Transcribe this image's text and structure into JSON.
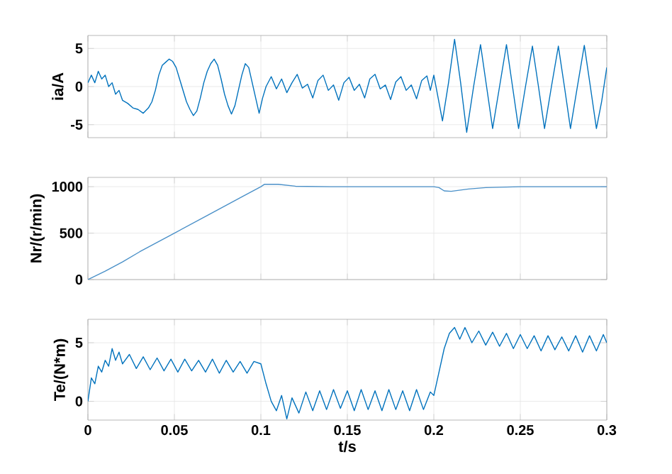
{
  "chart_data": [
    {
      "type": "line",
      "ylabel": "ia/A",
      "xlim": [
        0,
        0.3
      ],
      "ylim": [
        -6.7,
        6.7
      ],
      "xticks": [
        0,
        0.05,
        0.1,
        0.15,
        0.2,
        0.25,
        0.3
      ],
      "yticks": [
        -5,
        0,
        5
      ],
      "grid": true,
      "tick_labels": "y",
      "color": "#0072bd",
      "x": [
        0,
        0.002,
        0.004,
        0.006,
        0.008,
        0.01,
        0.012,
        0.014,
        0.016,
        0.018,
        0.02,
        0.023,
        0.026,
        0.029,
        0.032,
        0.035,
        0.037,
        0.039,
        0.041,
        0.043,
        0.045,
        0.047,
        0.049,
        0.051,
        0.053,
        0.055,
        0.057,
        0.059,
        0.061,
        0.063,
        0.065,
        0.067,
        0.069,
        0.071,
        0.073,
        0.075,
        0.077,
        0.079,
        0.081,
        0.083,
        0.085,
        0.087,
        0.089,
        0.091,
        0.093,
        0.095,
        0.097,
        0.099,
        0.101,
        0.103,
        0.106,
        0.109,
        0.112,
        0.115,
        0.118,
        0.121,
        0.124,
        0.127,
        0.13,
        0.133,
        0.136,
        0.139,
        0.142,
        0.145,
        0.148,
        0.151,
        0.154,
        0.157,
        0.16,
        0.163,
        0.166,
        0.169,
        0.172,
        0.175,
        0.178,
        0.181,
        0.184,
        0.187,
        0.19,
        0.193,
        0.196,
        0.198,
        0.2,
        0.2025,
        0.205,
        0.2085,
        0.212,
        0.2155,
        0.219,
        0.223,
        0.227,
        0.2305,
        0.234,
        0.238,
        0.242,
        0.2455,
        0.249,
        0.253,
        0.257,
        0.2605,
        0.264,
        0.268,
        0.272,
        0.2755,
        0.279,
        0.283,
        0.287,
        0.2905,
        0.294,
        0.297,
        0.3
      ],
      "values": [
        0.5,
        1.5,
        0.5,
        2,
        1,
        1.5,
        0,
        0.5,
        -1,
        -0.5,
        -1.8,
        -2.2,
        -2.8,
        -3,
        -3.5,
        -2.8,
        -2,
        -0.5,
        1.5,
        2.8,
        3.2,
        3.6,
        3.3,
        2.5,
        1,
        -0.5,
        -2,
        -3,
        -3.8,
        -3.2,
        -1.5,
        0.5,
        2,
        3,
        3.6,
        2.8,
        1,
        -1,
        -2.5,
        -3.6,
        -2.5,
        -0.5,
        1.5,
        3,
        2.5,
        0.5,
        -1.5,
        -3.5,
        -1.5,
        0,
        1.3,
        -0.3,
        1,
        -0.8,
        0.5,
        1.6,
        -0.2,
        0.3,
        -1.5,
        0.8,
        1.5,
        -0.5,
        0.2,
        -1.8,
        0.5,
        1.2,
        -0.5,
        0.3,
        -1.5,
        1,
        1.6,
        -0.3,
        0.2,
        -1.7,
        0.6,
        1.3,
        -0.5,
        0.2,
        -1.6,
        0.8,
        1.4,
        -0.5,
        1.5,
        -1.5,
        -4.5,
        0.5,
        6.2,
        0.5,
        -6,
        0,
        5.5,
        0,
        -5.5,
        0,
        5.5,
        0,
        -5.5,
        0,
        5.3,
        0,
        -5.5,
        0,
        5.3,
        0,
        -5.5,
        0,
        5.4,
        0,
        -5.5,
        -2,
        2.5
      ]
    },
    {
      "type": "line",
      "ylabel": "Nr/(r/min)",
      "xlim": [
        0,
        0.3
      ],
      "ylim": [
        0,
        1100
      ],
      "xticks": [
        0,
        0.05,
        0.1,
        0.15,
        0.2,
        0.25,
        0.3
      ],
      "yticks": [
        0,
        500,
        1000
      ],
      "grid": true,
      "tick_labels": "y",
      "color": "#4a90c8",
      "x": [
        0,
        0.01,
        0.02,
        0.03,
        0.05,
        0.07,
        0.09,
        0.1,
        0.102,
        0.11,
        0.12,
        0.14,
        0.2,
        0.203,
        0.206,
        0.21,
        0.22,
        0.23,
        0.25,
        0.3
      ],
      "values": [
        0,
        90,
        190,
        300,
        500,
        700,
        900,
        1000,
        1025,
        1025,
        1005,
        1000,
        1000,
        990,
        955,
        950,
        975,
        990,
        1000,
        1000
      ]
    },
    {
      "type": "line",
      "ylabel": "Te/(N*m)",
      "xlabel": "t/s",
      "xlim": [
        0,
        0.3
      ],
      "ylim": [
        -1.6,
        7
      ],
      "xticks": [
        0,
        0.05,
        0.1,
        0.15,
        0.2,
        0.25,
        0.3
      ],
      "yticks": [
        0,
        5
      ],
      "grid": true,
      "color": "#0072bd",
      "x": [
        0,
        0.002,
        0.004,
        0.006,
        0.008,
        0.01,
        0.012,
        0.014,
        0.016,
        0.018,
        0.02,
        0.024,
        0.028,
        0.032,
        0.036,
        0.04,
        0.044,
        0.048,
        0.052,
        0.056,
        0.06,
        0.064,
        0.068,
        0.072,
        0.076,
        0.08,
        0.084,
        0.088,
        0.092,
        0.096,
        0.1,
        0.103,
        0.106,
        0.109,
        0.112,
        0.115,
        0.118,
        0.122,
        0.126,
        0.13,
        0.134,
        0.138,
        0.142,
        0.146,
        0.15,
        0.154,
        0.158,
        0.162,
        0.166,
        0.17,
        0.174,
        0.178,
        0.182,
        0.186,
        0.19,
        0.194,
        0.198,
        0.2,
        0.203,
        0.206,
        0.209,
        0.212,
        0.215,
        0.218,
        0.222,
        0.226,
        0.23,
        0.234,
        0.238,
        0.242,
        0.246,
        0.25,
        0.254,
        0.258,
        0.262,
        0.266,
        0.27,
        0.274,
        0.278,
        0.282,
        0.286,
        0.29,
        0.294,
        0.298,
        0.3
      ],
      "values": [
        0,
        2,
        1.5,
        3,
        2.5,
        3.5,
        3,
        4.5,
        3.5,
        4.2,
        3.2,
        4,
        2.8,
        3.8,
        2.7,
        3.7,
        2.6,
        3.6,
        2.5,
        3.6,
        2.6,
        3.5,
        2.5,
        3.6,
        2.4,
        3.5,
        2.5,
        3.4,
        2.4,
        3.4,
        3.2,
        1.5,
        0,
        -0.8,
        0.5,
        -1.5,
        0.3,
        -1,
        0.8,
        -0.8,
        0.9,
        -0.7,
        1,
        -0.6,
        0.9,
        -0.8,
        1,
        -0.7,
        0.9,
        -0.8,
        1,
        -0.7,
        0.9,
        -0.8,
        1,
        -0.7,
        0.8,
        0.5,
        2.5,
        4.5,
        5.8,
        6.3,
        5.3,
        6.3,
        5,
        6,
        4.8,
        5.9,
        4.7,
        5.8,
        4.5,
        5.7,
        4.5,
        5.6,
        4.3,
        5.6,
        4.4,
        5.5,
        4.3,
        5.6,
        4.2,
        5.6,
        4.3,
        5.7,
        5
      ]
    }
  ]
}
